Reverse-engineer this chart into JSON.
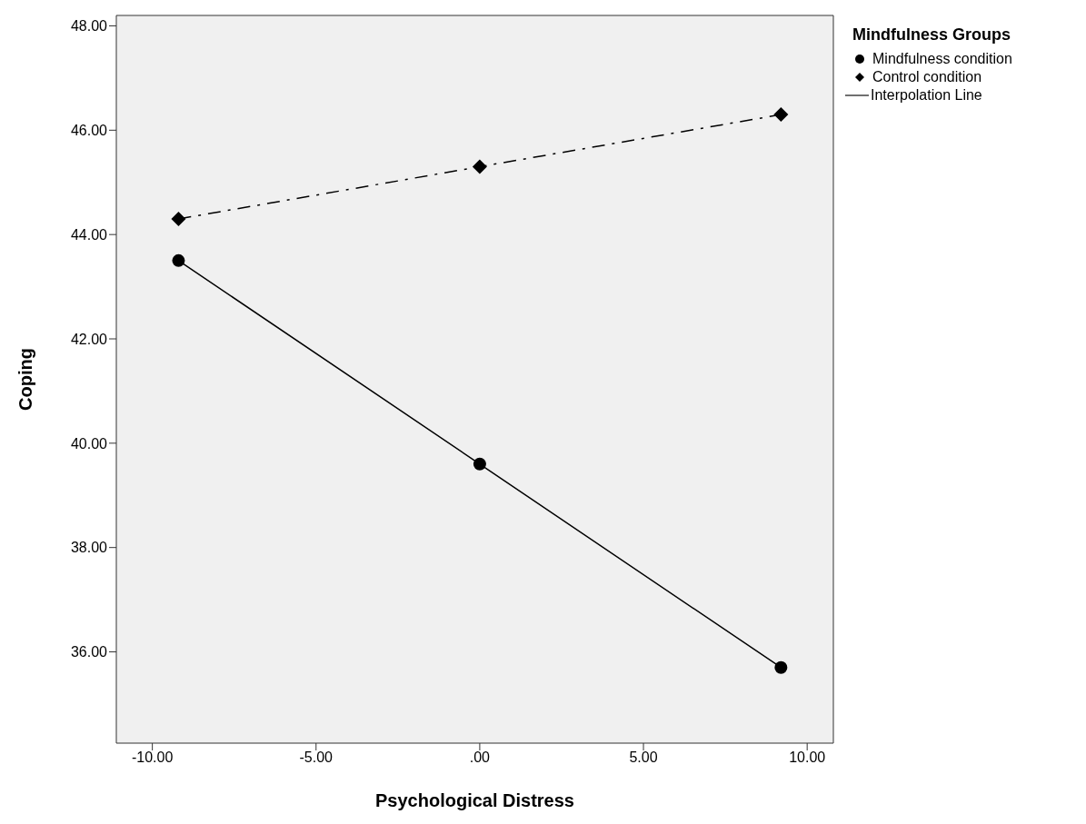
{
  "chart_data": {
    "type": "line",
    "xlabel": "Psychological Distress",
    "ylabel": "Coping",
    "legend_title": "Mindfulness Groups",
    "annotations": [
      "Interpolation Line"
    ],
    "xlim": [
      -11.1,
      10.8
    ],
    "xticks": [
      {
        "value": -10,
        "label": "-10.00"
      },
      {
        "value": -5,
        "label": "-5.00"
      },
      {
        "value": 0,
        "label": ".00"
      },
      {
        "value": 5,
        "label": "5.00"
      },
      {
        "value": 10,
        "label": "10.00"
      }
    ],
    "ylim": [
      34.25,
      48.2
    ],
    "yticks": [
      {
        "value": 36,
        "label": "36.00"
      },
      {
        "value": 38,
        "label": "38.00"
      },
      {
        "value": 40,
        "label": "40.00"
      },
      {
        "value": 42,
        "label": "42.00"
      },
      {
        "value": 44,
        "label": "44.00"
      },
      {
        "value": 46,
        "label": "46.00"
      },
      {
        "value": 48,
        "label": "48.00"
      }
    ],
    "x": [
      -9.2,
      0,
      9.2
    ],
    "legend": "right",
    "series": [
      {
        "name": "Mindfulness condition",
        "color": "#000000",
        "marker": "circle",
        "line_style": "solid",
        "values": [
          43.5,
          39.6,
          35.7
        ]
      },
      {
        "name": "Control condition",
        "color": "#000000",
        "marker": "diamond",
        "line_style": "dashed",
        "values": [
          44.3,
          45.3,
          46.3
        ]
      }
    ]
  }
}
